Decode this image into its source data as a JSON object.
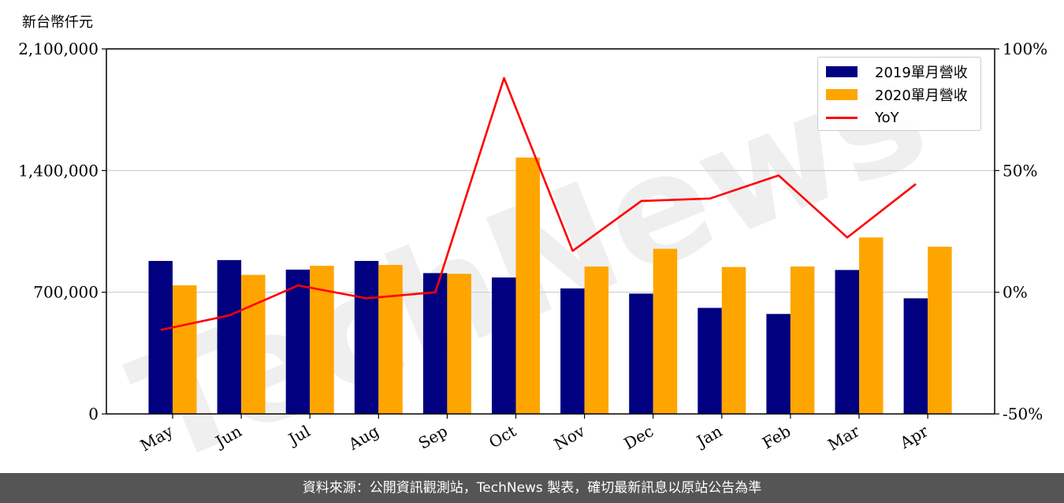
{
  "unit_label": "新台幣仟元",
  "footer_text": "資料來源：公開資訊觀測站，TechNews 製表，確切最新訊息以原站公告為準",
  "watermark": "TechNews",
  "colors": {
    "series_2019": "#000080",
    "series_2020": "#ffa500",
    "yoy": "#ff0000",
    "grid": "#cccccc",
    "footer_bg": "#555555"
  },
  "chart_data": {
    "type": "bar",
    "categories": [
      "May",
      "Jun",
      "Jul",
      "Aug",
      "Sep",
      "Oct",
      "Nov",
      "Dec",
      "Jan",
      "Feb",
      "Mar",
      "Apr"
    ],
    "series": [
      {
        "name": "2019單月營收",
        "type": "bar",
        "axis": "left",
        "values": [
          880000,
          885000,
          830000,
          880000,
          810000,
          785000,
          722000,
          692000,
          610000,
          575000,
          828000,
          665000
        ]
      },
      {
        "name": "2020單月營收",
        "type": "bar",
        "axis": "left",
        "values": [
          740000,
          800000,
          852000,
          857000,
          806000,
          1475000,
          848000,
          950000,
          845000,
          848000,
          1015000,
          962000
        ]
      },
      {
        "name": "YoY",
        "type": "line",
        "axis": "right",
        "values": [
          -15.5,
          -9.5,
          2.8,
          -2.5,
          0,
          88,
          17,
          37.5,
          38.5,
          48,
          22.5,
          44.5
        ]
      }
    ],
    "y_left": {
      "min": 0,
      "max": 2100000,
      "ticks": [
        "0",
        "700,000",
        "1,400,000",
        "2,100,000"
      ],
      "tick_values": [
        0,
        700000,
        1400000,
        2100000
      ]
    },
    "y_right": {
      "min": -50,
      "max": 100,
      "ticks": [
        "-50%",
        "0%",
        "50%",
        "100%"
      ],
      "tick_values": [
        -50,
        0,
        50,
        100
      ]
    },
    "grid": true,
    "legend_position": "top-right"
  }
}
